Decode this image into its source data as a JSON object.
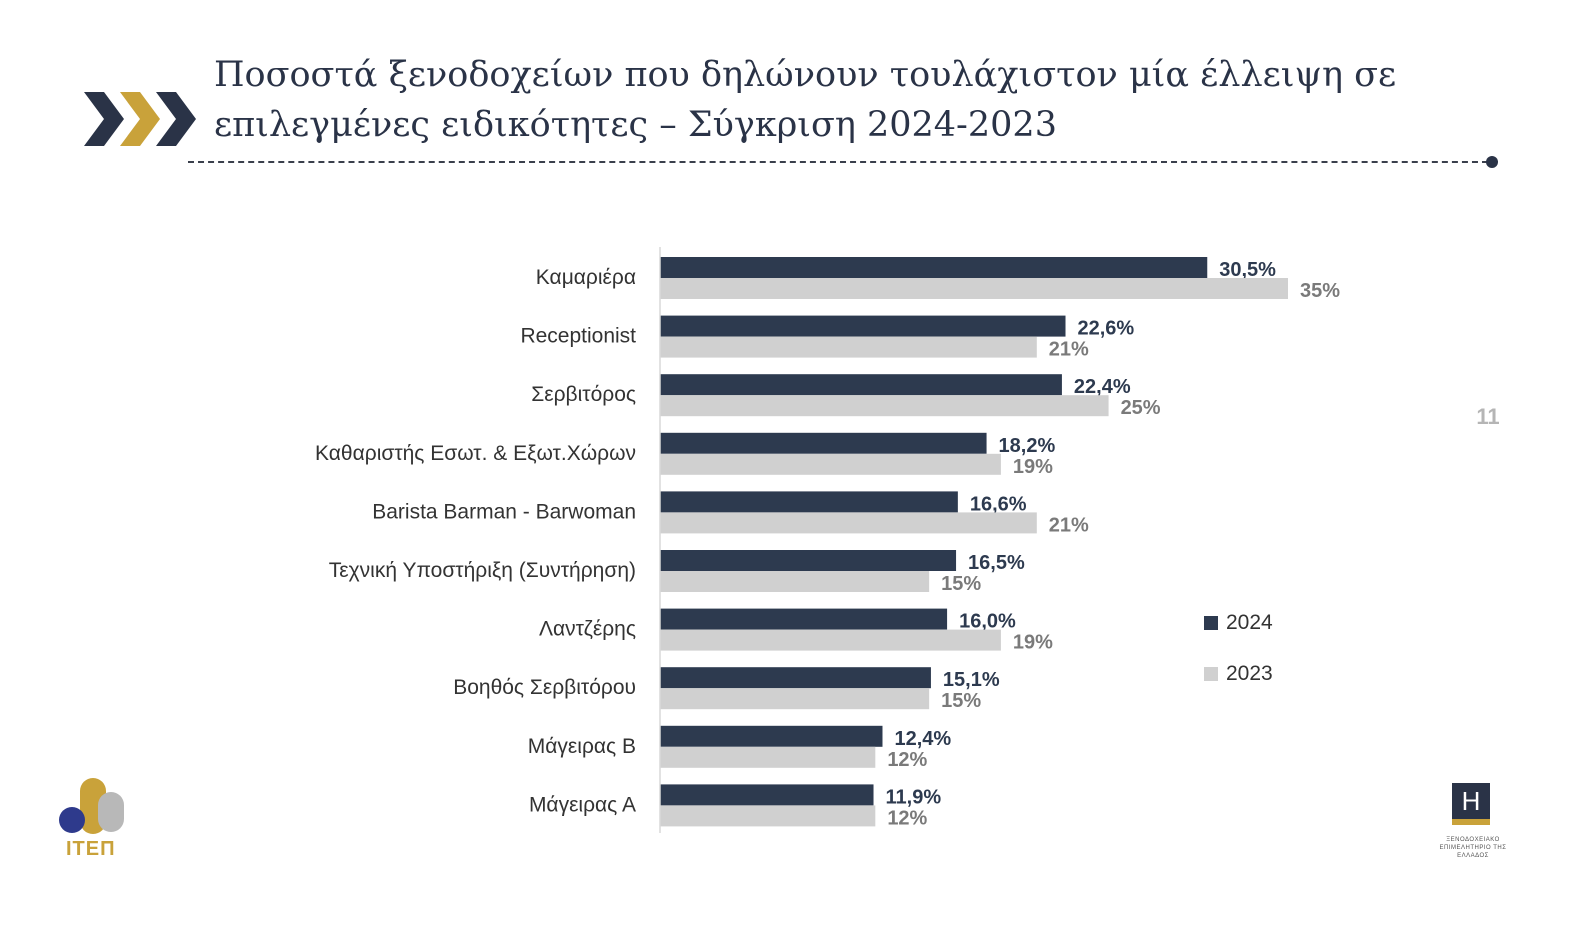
{
  "header": {
    "title_line1": "Ποσοστά ξενοδοχείων που δηλώνουν τουλάχιστον μία έλλειψη σε",
    "title_line2": "επιλεγμένες ειδικότητες – Σύγκριση 2024-2023",
    "page_number": "11",
    "accent_color": "#c9a23a",
    "dark_color": "#2a3347"
  },
  "chart_data": {
    "type": "bar",
    "orientation": "horizontal",
    "title": "",
    "xlabel": "",
    "ylabel": "",
    "categories": [
      "Καμαριέρα",
      "Receptionist",
      "Σερβιτόρος",
      "Καθαριστής Εσωτ. & Εξωτ.Χώρων",
      "Barista  Barman - Barwoman",
      "Τεχνική Υποστήριξη (Συντήρηση)",
      "Λαντζέρης",
      "Βοηθός Σερβιτόρου",
      "Μάγειρας Β",
      "Μάγειρας Α"
    ],
    "series": [
      {
        "name": "2024",
        "color": "#2d3a4f",
        "label_color": "#2d3a4f",
        "values": [
          30.5,
          22.6,
          22.4,
          18.2,
          16.6,
          16.5,
          16.0,
          15.1,
          12.4,
          11.9
        ],
        "labels": [
          "30,5%",
          "22,6%",
          "22,4%",
          "18,2%",
          "16,6%",
          "16,5%",
          "16,0%",
          "15,1%",
          "12,4%",
          "11,9%"
        ]
      },
      {
        "name": "2023",
        "color": "#d0d0d0",
        "label_color": "#7a7a7a",
        "values": [
          35,
          21,
          25,
          19,
          21,
          15,
          19,
          15,
          12,
          12
        ],
        "labels": [
          "35%",
          "21%",
          "25%",
          "19%",
          "21%",
          "15%",
          "19%",
          "15%",
          "12%",
          "12%"
        ]
      }
    ],
    "xlim": [
      0,
      35
    ],
    "grid": false,
    "legend": "right"
  },
  "logos": {
    "left_text": "ΙΤΕΠ",
    "right_letter": "H",
    "right_caption": "ΞΕΝΟΔΟΧΕΙΑΚΟ ΕΠΙΜΕΛΗΤΗΡΙΟ ΤΗΣ ΕΛΛΑΔΟΣ"
  }
}
